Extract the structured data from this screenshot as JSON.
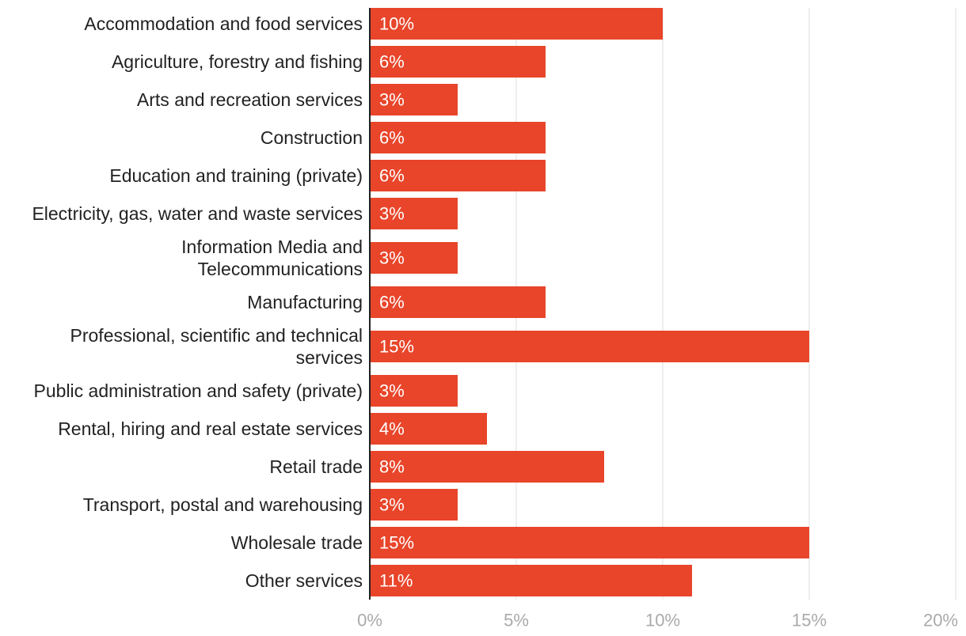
{
  "chart_data": {
    "type": "bar",
    "orientation": "horizontal",
    "title": "",
    "xlabel": "",
    "ylabel": "",
    "xlim": [
      0,
      20
    ],
    "grid": true,
    "bar_color": "#e8452a",
    "gridline_color": "#dddddd",
    "axis_color": "#222222",
    "categories": [
      [
        "Accommodation and food services"
      ],
      [
        "Agriculture, forestry and fishing"
      ],
      [
        "Arts and recreation services"
      ],
      [
        "Construction"
      ],
      [
        "Education and training (private)"
      ],
      [
        "Electricity, gas, water and waste services"
      ],
      [
        "Information Media and",
        "Telecommunications"
      ],
      [
        "Manufacturing"
      ],
      [
        "Professional, scientific and technical",
        "services"
      ],
      [
        "Public administration and safety (private)"
      ],
      [
        "Rental, hiring and real estate services"
      ],
      [
        "Retail trade"
      ],
      [
        "Transport, postal and warehousing"
      ],
      [
        "Wholesale trade"
      ],
      [
        "Other services"
      ]
    ],
    "values": [
      10,
      6,
      3,
      6,
      6,
      3,
      3,
      6,
      15,
      3,
      4,
      8,
      3,
      15,
      11
    ],
    "value_labels": [
      "10%",
      "6%",
      "3%",
      "6%",
      "6%",
      "3%",
      "3%",
      "6%",
      "15%",
      "3%",
      "4%",
      "8%",
      "3%",
      "15%",
      "11%"
    ],
    "ticks": [
      0,
      5,
      10,
      15,
      20
    ],
    "tick_labels": [
      "0%",
      "5%",
      "10%",
      "15%",
      "20%"
    ]
  }
}
